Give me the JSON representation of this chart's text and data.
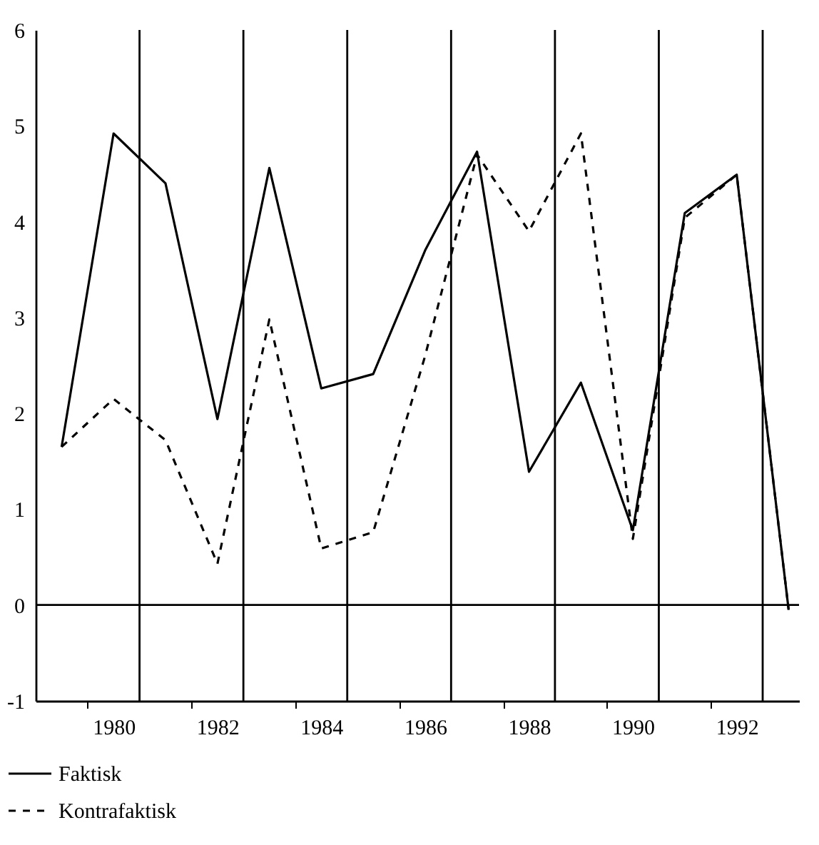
{
  "chart_data": {
    "type": "line",
    "x": [
      1979,
      1980,
      1981,
      1982,
      1983,
      1984,
      1985,
      1986,
      1987,
      1988,
      1989,
      1990,
      1991,
      1992,
      1993
    ],
    "series": [
      {
        "name": "Faktisk",
        "color": "#000000",
        "line_style": "solid",
        "values": [
          1.65,
          4.92,
          4.4,
          1.94,
          4.56,
          2.26,
          2.41,
          3.7,
          4.73,
          1.39,
          2.32,
          0.78,
          4.09,
          4.49,
          -0.05
        ]
      },
      {
        "name": "Kontrafaktisk",
        "color": "#000000",
        "line_style": "dashed",
        "values": [
          1.65,
          2.15,
          1.72,
          0.43,
          2.98,
          0.59,
          0.76,
          2.6,
          4.7,
          3.9,
          4.92,
          0.69,
          4.04,
          4.49,
          -0.05
        ]
      }
    ],
    "xlim": [
      1978.5,
      1993.2
    ],
    "xticks": [
      {
        "value": 1979.5,
        "label": null
      },
      1980,
      {
        "value": 1981.5,
        "label": null
      },
      1982,
      {
        "value": 1983.5,
        "label": null
      },
      1984,
      {
        "value": 1985.5,
        "label": null
      },
      1986,
      {
        "value": 1987.5,
        "label": null
      },
      1988,
      {
        "value": 1989.5,
        "label": null
      },
      1990,
      {
        "value": 1991.5,
        "label": null
      },
      1992
    ],
    "ylim": [
      -1,
      6
    ],
    "yticks": [
      -1,
      0,
      1,
      2,
      3,
      4,
      5,
      6
    ],
    "ref_lines": [
      {
        "axis": "y",
        "value": 0
      },
      {
        "axis": "x",
        "value": 1980.5
      },
      {
        "axis": "x",
        "value": 1982.5
      },
      {
        "axis": "x",
        "value": 1984.5
      },
      {
        "axis": "x",
        "value": 1986.5
      },
      {
        "axis": "x",
        "value": 1988.5
      },
      {
        "axis": "x",
        "value": 1990.5
      },
      {
        "axis": "x",
        "value": 1992.5
      }
    ],
    "grid": false,
    "legend": "bottom left"
  }
}
